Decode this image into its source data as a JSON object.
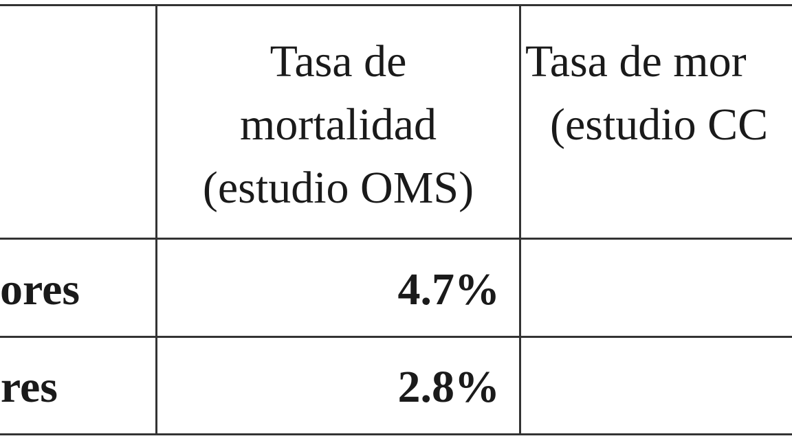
{
  "table": {
    "header": {
      "col1_lines": [
        "Tasa de",
        "mortalidad",
        "(estudio OMS)"
      ],
      "col2_lines": [
        "Tasa de mor",
        "(estudio CC"
      ]
    },
    "rows": [
      {
        "label": "ores",
        "col1": "4.7%",
        "col2": ""
      },
      {
        "label": "res",
        "col1": "2.8%",
        "col2": ""
      }
    ]
  }
}
